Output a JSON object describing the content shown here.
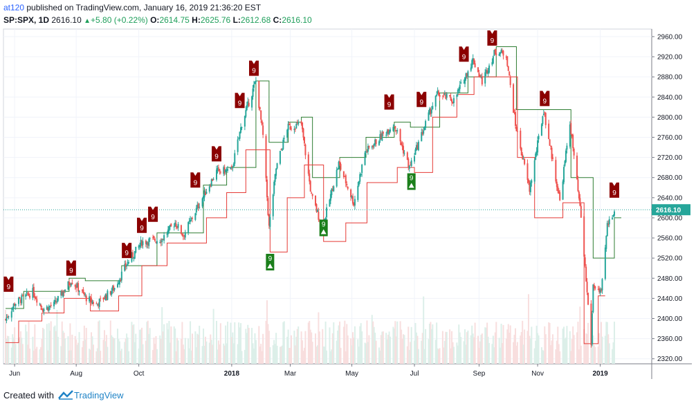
{
  "header": {
    "user": "at120",
    "published": "published on TradingView.com, January 16, 2019 21:36:20 EST",
    "symbol": "SP:SPX, 1D",
    "last": "2616.10",
    "change": "+5.80 (+0.22%)",
    "o_label": "O:",
    "o": "2614.75",
    "h_label": "H:",
    "h": "2625.76",
    "l_label": "L:",
    "l": "2612.68",
    "c_label": "C:",
    "c": "2616.10"
  },
  "footer": {
    "created_with": "Created with",
    "brand": "TradingView"
  },
  "colors": {
    "up": "#26a69a",
    "down": "#ef5350",
    "resistance": "#2e7d32",
    "support": "#e53935",
    "sell_marker": "#8b0000",
    "buy_marker": "#1b7f1b",
    "price_line": "#26a69a"
  },
  "chart_data": {
    "type": "candlestick",
    "title": "",
    "xlabel": "",
    "ylabel": "",
    "ylim": [
      2310,
      2975
    ],
    "yticks": [
      2320,
      2360,
      2400,
      2440,
      2480,
      2520,
      2560,
      2600,
      2640,
      2680,
      2720,
      2760,
      2800,
      2840,
      2880,
      2920,
      2960
    ],
    "x_range": [
      "2017-05-23",
      "2019-01-16"
    ],
    "x_labels": [
      {
        "label": "Jun",
        "date": "2017-06-01",
        "bold": false
      },
      {
        "label": "Aug",
        "date": "2017-08-01",
        "bold": false
      },
      {
        "label": "Oct",
        "date": "2017-10-02",
        "bold": false
      },
      {
        "label": "2018",
        "date": "2018-01-02",
        "bold": true
      },
      {
        "label": "Mar",
        "date": "2018-03-01",
        "bold": false
      },
      {
        "label": "May",
        "date": "2018-05-01",
        "bold": false
      },
      {
        "label": "Jul",
        "date": "2018-07-02",
        "bold": false
      },
      {
        "label": "Sep",
        "date": "2018-09-04",
        "bold": false
      },
      {
        "label": "Nov",
        "date": "2018-11-01",
        "bold": false
      },
      {
        "label": "2019",
        "date": "2019-01-02",
        "bold": true
      }
    ],
    "close_series": [
      {
        "date": "2017-05-23",
        "close": 2398
      },
      {
        "date": "2017-06-01",
        "close": 2430
      },
      {
        "date": "2017-06-19",
        "close": 2453
      },
      {
        "date": "2017-06-29",
        "close": 2419
      },
      {
        "date": "2017-07-10",
        "close": 2427
      },
      {
        "date": "2017-07-27",
        "close": 2476
      },
      {
        "date": "2017-08-11",
        "close": 2441
      },
      {
        "date": "2017-08-21",
        "close": 2428
      },
      {
        "date": "2017-09-08",
        "close": 2461
      },
      {
        "date": "2017-09-20",
        "close": 2508
      },
      {
        "date": "2017-10-05",
        "close": 2552
      },
      {
        "date": "2017-10-25",
        "close": 2558
      },
      {
        "date": "2017-11-07",
        "close": 2591
      },
      {
        "date": "2017-11-15",
        "close": 2565
      },
      {
        "date": "2017-12-04",
        "close": 2640
      },
      {
        "date": "2017-12-18",
        "close": 2692
      },
      {
        "date": "2018-01-02",
        "close": 2695
      },
      {
        "date": "2018-01-12",
        "close": 2787
      },
      {
        "date": "2018-01-26",
        "close": 2872
      },
      {
        "date": "2018-02-02",
        "close": 2762
      },
      {
        "date": "2018-02-08",
        "close": 2581
      },
      {
        "date": "2018-02-15",
        "close": 2698
      },
      {
        "date": "2018-02-26",
        "close": 2779
      },
      {
        "date": "2018-03-12",
        "close": 2786
      },
      {
        "date": "2018-03-22",
        "close": 2643
      },
      {
        "date": "2018-04-02",
        "close": 2581
      },
      {
        "date": "2018-04-18",
        "close": 2708
      },
      {
        "date": "2018-05-03",
        "close": 2629
      },
      {
        "date": "2018-05-14",
        "close": 2730
      },
      {
        "date": "2018-06-12",
        "close": 2787
      },
      {
        "date": "2018-06-27",
        "close": 2699
      },
      {
        "date": "2018-07-17",
        "close": 2809
      },
      {
        "date": "2018-07-25",
        "close": 2846
      },
      {
        "date": "2018-08-10",
        "close": 2833
      },
      {
        "date": "2018-08-29",
        "close": 2914
      },
      {
        "date": "2018-09-07",
        "close": 2871
      },
      {
        "date": "2018-09-20",
        "close": 2931
      },
      {
        "date": "2018-10-01",
        "close": 2924
      },
      {
        "date": "2018-10-10",
        "close": 2785
      },
      {
        "date": "2018-10-24",
        "close": 2656
      },
      {
        "date": "2018-11-07",
        "close": 2814
      },
      {
        "date": "2018-11-23",
        "close": 2633
      },
      {
        "date": "2018-12-03",
        "close": 2790
      },
      {
        "date": "2018-12-14",
        "close": 2600
      },
      {
        "date": "2018-12-24",
        "close": 2351
      },
      {
        "date": "2018-12-26",
        "close": 2467
      },
      {
        "date": "2019-01-03",
        "close": 2448
      },
      {
        "date": "2019-01-09",
        "close": 2585
      },
      {
        "date": "2019-01-16",
        "close": 2616
      }
    ],
    "resistance_line": [
      {
        "date": "2017-05-23",
        "value": 2420
      },
      {
        "date": "2017-06-10",
        "value": 2454
      },
      {
        "date": "2017-07-25",
        "value": 2480
      },
      {
        "date": "2017-08-10",
        "value": 2475
      },
      {
        "date": "2017-09-15",
        "value": 2505
      },
      {
        "date": "2017-10-20",
        "value": 2570
      },
      {
        "date": "2017-12-05",
        "value": 2665
      },
      {
        "date": "2017-12-28",
        "value": 2700
      },
      {
        "date": "2018-01-26",
        "value": 2872
      },
      {
        "date": "2018-02-08",
        "value": 2750
      },
      {
        "date": "2018-02-27",
        "value": 2790
      },
      {
        "date": "2018-03-12",
        "value": 2800
      },
      {
        "date": "2018-03-23",
        "value": 2680
      },
      {
        "date": "2018-04-19",
        "value": 2720
      },
      {
        "date": "2018-05-15",
        "value": 2760
      },
      {
        "date": "2018-06-12",
        "value": 2790
      },
      {
        "date": "2018-06-28",
        "value": 2780
      },
      {
        "date": "2018-07-27",
        "value": 2848
      },
      {
        "date": "2018-08-24",
        "value": 2880
      },
      {
        "date": "2018-09-21",
        "value": 2940
      },
      {
        "date": "2018-10-11",
        "value": 2815
      },
      {
        "date": "2018-11-09",
        "value": 2815
      },
      {
        "date": "2018-12-04",
        "value": 2680
      },
      {
        "date": "2018-12-26",
        "value": 2520
      },
      {
        "date": "2019-01-16",
        "value": 2600
      }
    ],
    "support_line": [
      {
        "date": "2017-05-23",
        "value": 2352
      },
      {
        "date": "2017-06-05",
        "value": 2395
      },
      {
        "date": "2017-06-28",
        "value": 2411
      },
      {
        "date": "2017-07-20",
        "value": 2440
      },
      {
        "date": "2017-08-15",
        "value": 2415
      },
      {
        "date": "2017-09-12",
        "value": 2445
      },
      {
        "date": "2017-10-05",
        "value": 2505
      },
      {
        "date": "2017-10-30",
        "value": 2550
      },
      {
        "date": "2017-12-08",
        "value": 2600
      },
      {
        "date": "2017-12-28",
        "value": 2650
      },
      {
        "date": "2018-01-16",
        "value": 2735
      },
      {
        "date": "2018-02-09",
        "value": 2532
      },
      {
        "date": "2018-02-26",
        "value": 2640
      },
      {
        "date": "2018-03-15",
        "value": 2705
      },
      {
        "date": "2018-04-03",
        "value": 2553
      },
      {
        "date": "2018-04-25",
        "value": 2590
      },
      {
        "date": "2018-05-16",
        "value": 2670
      },
      {
        "date": "2018-06-15",
        "value": 2700
      },
      {
        "date": "2018-07-02",
        "value": 2690
      },
      {
        "date": "2018-07-20",
        "value": 2800
      },
      {
        "date": "2018-08-13",
        "value": 2845
      },
      {
        "date": "2018-08-30",
        "value": 2880
      },
      {
        "date": "2018-10-12",
        "value": 2720
      },
      {
        "date": "2018-10-29",
        "value": 2600
      },
      {
        "date": "2018-11-26",
        "value": 2630
      },
      {
        "date": "2018-12-17",
        "value": 2350
      },
      {
        "date": "2018-12-31",
        "value": 2445
      }
    ],
    "sell_signals": [
      {
        "date": "2017-05-26",
        "value": 2453,
        "label": "9"
      },
      {
        "date": "2017-07-27",
        "value": 2485,
        "label": "9"
      },
      {
        "date": "2017-09-20",
        "value": 2520,
        "label": "9"
      },
      {
        "date": "2017-10-05",
        "value": 2570,
        "label": "9"
      },
      {
        "date": "2017-10-16",
        "value": 2592,
        "label": "9"
      },
      {
        "date": "2017-11-27",
        "value": 2660,
        "label": "9"
      },
      {
        "date": "2017-12-18",
        "value": 2712,
        "label": "9"
      },
      {
        "date": "2018-01-10",
        "value": 2818,
        "label": "9"
      },
      {
        "date": "2018-01-24",
        "value": 2882,
        "label": "9"
      },
      {
        "date": "2018-06-07",
        "value": 2815,
        "label": "9"
      },
      {
        "date": "2018-07-09",
        "value": 2820,
        "label": "9"
      },
      {
        "date": "2018-08-20",
        "value": 2910,
        "label": "9"
      },
      {
        "date": "2018-09-17",
        "value": 2942,
        "label": "9"
      },
      {
        "date": "2018-11-08",
        "value": 2822,
        "label": "9"
      },
      {
        "date": "2019-01-16",
        "value": 2640,
        "label": "9"
      }
    ],
    "buy_signals": [
      {
        "date": "2018-02-09",
        "value": 2512,
        "label": "9"
      },
      {
        "date": "2018-04-03",
        "value": 2580,
        "label": "9"
      },
      {
        "date": "2018-06-29",
        "value": 2672,
        "label": "9"
      }
    ],
    "volume_range": [
      0,
      7000
    ],
    "last_price": "2616.10",
    "last_value": 2616.1
  }
}
